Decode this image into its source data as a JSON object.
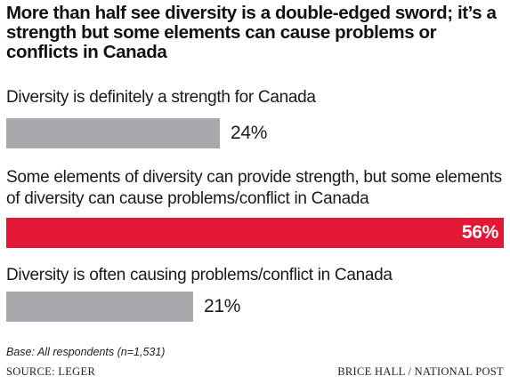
{
  "chart_data": {
    "type": "bar",
    "orientation": "horizontal",
    "title": "More than half see diversity is a double-edged sword; it’s a strength but some elements can cause problems or conflicts in Canada",
    "categories": [
      "Diversity is definitely a strength for Canada",
      "Some elements of diversity can provide strength, but some elements of diversity can cause problems/conflict in Canada",
      "Diversity is often causing problems/conflict in Canada"
    ],
    "values": [
      24,
      56,
      21
    ],
    "value_labels": [
      "24%",
      "56%",
      "21%"
    ],
    "colors": [
      "#a7a9ac",
      "#e31837",
      "#a7a9ac"
    ],
    "unit": "%",
    "xlim": [
      0,
      56
    ],
    "grid": false,
    "legend": "none"
  },
  "footer": {
    "base": "Base: All respondents (n=1,531)",
    "source": "SOURCE: LEGER",
    "credit": "BRICE HALL  / NATIONAL POST"
  }
}
